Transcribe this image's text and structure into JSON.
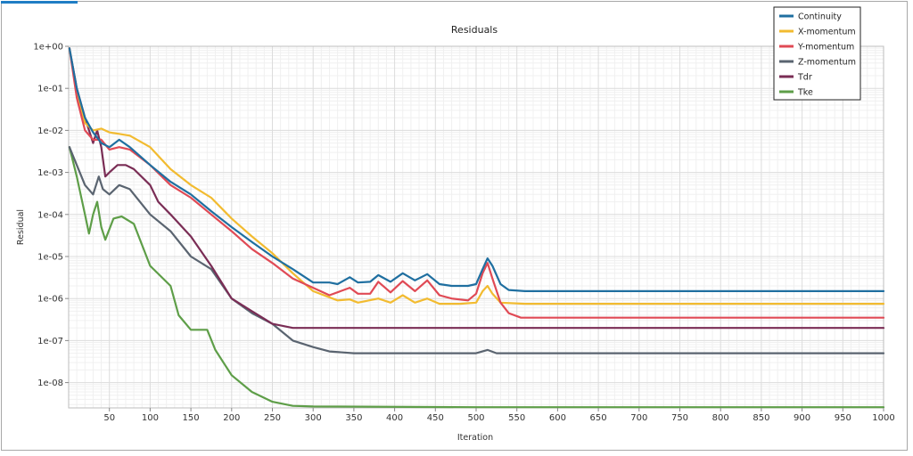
{
  "chart_data": {
    "type": "line",
    "title": "Residuals",
    "xlabel": "Iteration",
    "ylabel": "Residual",
    "xlim": [
      0,
      1000
    ],
    "ylim": [
      2.5e-09,
      1
    ],
    "yscale": "log",
    "grid": true,
    "legend_position": "top-right",
    "x_ticks": [
      "50",
      "100",
      "150",
      "200",
      "250",
      "300",
      "350",
      "400",
      "450",
      "500",
      "550",
      "600",
      "650",
      "700",
      "750",
      "800",
      "850",
      "900",
      "950",
      "1000"
    ],
    "y_ticks": [
      "1e+00",
      "1e-01",
      "1e-02",
      "1e-03",
      "1e-04",
      "1e-05",
      "1e-06",
      "1e-07",
      "1e-08"
    ],
    "series": [
      {
        "name": "Continuity",
        "color": "#1f6fa0",
        "points": [
          [
            1,
            0.9
          ],
          [
            10,
            0.1
          ],
          [
            20,
            0.02
          ],
          [
            30,
            0.009
          ],
          [
            40,
            0.005
          ],
          [
            50,
            0.004
          ],
          [
            62,
            0.006
          ],
          [
            75,
            0.004
          ],
          [
            100,
            0.0015
          ],
          [
            125,
            0.0006
          ],
          [
            150,
            0.0003
          ],
          [
            175,
            0.00012
          ],
          [
            200,
            5e-05
          ],
          [
            225,
            2.2e-05
          ],
          [
            250,
            1e-05
          ],
          [
            275,
            5e-06
          ],
          [
            300,
            2.4e-06
          ],
          [
            320,
            2.4e-06
          ],
          [
            330,
            2.2e-06
          ],
          [
            345,
            3.2e-06
          ],
          [
            355,
            2.4e-06
          ],
          [
            370,
            2.5e-06
          ],
          [
            380,
            3.6e-06
          ],
          [
            395,
            2.5e-06
          ],
          [
            410,
            4e-06
          ],
          [
            425,
            2.7e-06
          ],
          [
            440,
            3.8e-06
          ],
          [
            455,
            2.2e-06
          ],
          [
            470,
            2e-06
          ],
          [
            490,
            2e-06
          ],
          [
            500,
            2.2e-06
          ],
          [
            508,
            5e-06
          ],
          [
            514,
            9e-06
          ],
          [
            520,
            6e-06
          ],
          [
            530,
            2.2e-06
          ],
          [
            540,
            1.6e-06
          ],
          [
            560,
            1.5e-06
          ],
          [
            1000,
            1.5e-06
          ]
        ]
      },
      {
        "name": "X-momentum",
        "color": "#f2bb30",
        "points": [
          [
            1,
            0.9
          ],
          [
            10,
            0.08
          ],
          [
            20,
            0.015
          ],
          [
            30,
            0.01
          ],
          [
            40,
            0.011
          ],
          [
            50,
            0.009
          ],
          [
            75,
            0.0075
          ],
          [
            100,
            0.004
          ],
          [
            125,
            0.0012
          ],
          [
            150,
            0.0005
          ],
          [
            175,
            0.00025
          ],
          [
            200,
            8e-05
          ],
          [
            225,
            3e-05
          ],
          [
            250,
            1.2e-05
          ],
          [
            275,
            4e-06
          ],
          [
            300,
            1.5e-06
          ],
          [
            330,
            9e-07
          ],
          [
            345,
            9.5e-07
          ],
          [
            355,
            8e-07
          ],
          [
            380,
            1e-06
          ],
          [
            395,
            8e-07
          ],
          [
            410,
            1.2e-06
          ],
          [
            425,
            8e-07
          ],
          [
            440,
            1e-06
          ],
          [
            455,
            7.5e-07
          ],
          [
            480,
            7.5e-07
          ],
          [
            500,
            8e-07
          ],
          [
            508,
            1.5e-06
          ],
          [
            514,
            2e-06
          ],
          [
            520,
            1.3e-06
          ],
          [
            530,
            8e-07
          ],
          [
            560,
            7.5e-07
          ],
          [
            1000,
            7.5e-07
          ]
        ]
      },
      {
        "name": "Y-momentum",
        "color": "#e04a55",
        "points": [
          [
            1,
            0.9
          ],
          [
            10,
            0.06
          ],
          [
            20,
            0.01
          ],
          [
            30,
            0.006
          ],
          [
            40,
            0.006
          ],
          [
            50,
            0.0035
          ],
          [
            62,
            0.004
          ],
          [
            75,
            0.0035
          ],
          [
            100,
            0.0015
          ],
          [
            125,
            0.0005
          ],
          [
            150,
            0.00025
          ],
          [
            175,
            0.0001
          ],
          [
            200,
            4e-05
          ],
          [
            225,
            1.5e-05
          ],
          [
            250,
            7e-06
          ],
          [
            275,
            3e-06
          ],
          [
            300,
            1.8e-06
          ],
          [
            320,
            1.2e-06
          ],
          [
            345,
            1.8e-06
          ],
          [
            355,
            1.3e-06
          ],
          [
            370,
            1.3e-06
          ],
          [
            380,
            2.5e-06
          ],
          [
            395,
            1.4e-06
          ],
          [
            410,
            2.6e-06
          ],
          [
            425,
            1.5e-06
          ],
          [
            440,
            2.7e-06
          ],
          [
            455,
            1.2e-06
          ],
          [
            470,
            1e-06
          ],
          [
            490,
            9e-07
          ],
          [
            500,
            1.3e-06
          ],
          [
            508,
            4e-06
          ],
          [
            514,
            7e-06
          ],
          [
            520,
            3e-06
          ],
          [
            530,
            8e-07
          ],
          [
            540,
            4.5e-07
          ],
          [
            555,
            3.5e-07
          ],
          [
            1000,
            3.5e-07
          ]
        ]
      },
      {
        "name": "Z-momentum",
        "color": "#5a6470",
        "points": [
          [
            1,
            0.004
          ],
          [
            10,
            0.0015
          ],
          [
            20,
            0.0005
          ],
          [
            30,
            0.0003
          ],
          [
            37,
            0.0008
          ],
          [
            42,
            0.0004
          ],
          [
            50,
            0.0003
          ],
          [
            62,
            0.0005
          ],
          [
            75,
            0.0004
          ],
          [
            100,
            0.0001
          ],
          [
            125,
            4e-05
          ],
          [
            150,
            1e-05
          ],
          [
            175,
            5e-06
          ],
          [
            200,
            1e-06
          ],
          [
            225,
            4.5e-07
          ],
          [
            250,
            2.5e-07
          ],
          [
            275,
            1e-07
          ],
          [
            300,
            7e-08
          ],
          [
            320,
            5.5e-08
          ],
          [
            350,
            5e-08
          ],
          [
            450,
            5e-08
          ],
          [
            500,
            5e-08
          ],
          [
            514,
            6e-08
          ],
          [
            525,
            5e-08
          ],
          [
            1000,
            5e-08
          ]
        ]
      },
      {
        "name": "Tdr",
        "color": "#7a2d55",
        "points": [
          [
            1,
            0.9
          ],
          [
            10,
            0.1
          ],
          [
            20,
            0.02
          ],
          [
            30,
            0.005
          ],
          [
            35,
            0.01
          ],
          [
            40,
            0.004
          ],
          [
            45,
            0.0008
          ],
          [
            50,
            0.001
          ],
          [
            60,
            0.0015
          ],
          [
            70,
            0.0015
          ],
          [
            80,
            0.0012
          ],
          [
            100,
            0.0005
          ],
          [
            110,
            0.0002
          ],
          [
            125,
            0.0001
          ],
          [
            150,
            3e-05
          ],
          [
            175,
            6e-06
          ],
          [
            200,
            1e-06
          ],
          [
            225,
            5e-07
          ],
          [
            250,
            2.5e-07
          ],
          [
            275,
            2e-07
          ],
          [
            300,
            2e-07
          ],
          [
            1000,
            2e-07
          ]
        ]
      },
      {
        "name": "Tke",
        "color": "#5e9e48",
        "points": [
          [
            1,
            0.004
          ],
          [
            10,
            0.0008
          ],
          [
            20,
            0.0001
          ],
          [
            25,
            3.5e-05
          ],
          [
            30,
            0.0001
          ],
          [
            35,
            0.0002
          ],
          [
            40,
            5e-05
          ],
          [
            45,
            2.5e-05
          ],
          [
            55,
            8e-05
          ],
          [
            65,
            9e-05
          ],
          [
            80,
            6e-05
          ],
          [
            100,
            6e-06
          ],
          [
            125,
            2e-06
          ],
          [
            135,
            4e-07
          ],
          [
            150,
            1.8e-07
          ],
          [
            170,
            1.8e-07
          ],
          [
            180,
            6e-08
          ],
          [
            200,
            1.5e-08
          ],
          [
            225,
            6e-09
          ],
          [
            250,
            3.5e-09
          ],
          [
            275,
            2.8e-09
          ],
          [
            300,
            2.7e-09
          ],
          [
            500,
            2.6e-09
          ],
          [
            1000,
            2.6e-09
          ]
        ]
      }
    ]
  }
}
